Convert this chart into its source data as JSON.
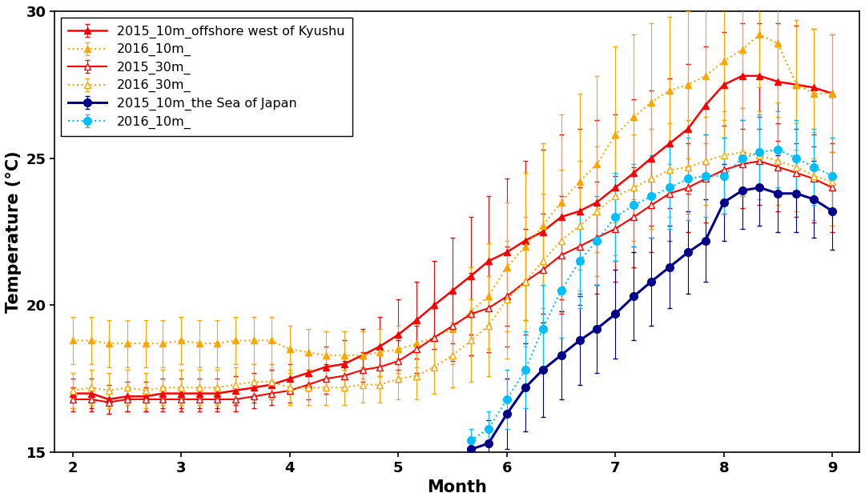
{
  "series": {
    "kyushu_2015_10m": {
      "label": "2015_10m_offshore west of Kyushu",
      "x": [
        2.0,
        2.17,
        2.33,
        2.5,
        2.67,
        2.83,
        3.0,
        3.17,
        3.33,
        3.5,
        3.67,
        3.83,
        4.0,
        4.17,
        4.33,
        4.5,
        4.67,
        4.83,
        5.0,
        5.17,
        5.33,
        5.5,
        5.67,
        5.83,
        6.0,
        6.17,
        6.33,
        6.5,
        6.67,
        6.83,
        7.0,
        7.17,
        7.33,
        7.5,
        7.67,
        7.83,
        8.0,
        8.17,
        8.33,
        8.5,
        8.67,
        8.83,
        9.0
      ],
      "y": [
        17.0,
        17.0,
        16.8,
        16.9,
        16.9,
        17.0,
        17.0,
        17.0,
        17.0,
        17.1,
        17.2,
        17.3,
        17.5,
        17.7,
        17.9,
        18.0,
        18.3,
        18.6,
        19.0,
        19.5,
        20.0,
        20.5,
        21.0,
        21.5,
        21.8,
        22.2,
        22.5,
        23.0,
        23.2,
        23.5,
        24.0,
        24.5,
        25.0,
        25.5,
        26.0,
        26.8,
        27.5,
        27.8,
        27.8,
        27.6,
        27.5,
        27.4,
        27.2
      ],
      "err": [
        0.5,
        0.5,
        0.5,
        0.5,
        0.5,
        0.5,
        0.5,
        0.5,
        0.5,
        0.5,
        0.5,
        0.5,
        0.5,
        0.6,
        0.7,
        0.8,
        0.9,
        1.0,
        1.2,
        1.3,
        1.5,
        1.8,
        2.0,
        2.2,
        2.5,
        2.7,
        2.8,
        2.8,
        2.8,
        2.8,
        2.5,
        2.5,
        2.3,
        2.2,
        2.2,
        2.0,
        1.8,
        1.8,
        1.8,
        2.0,
        2.0,
        2.0,
        2.0
      ],
      "color": "#FF0000",
      "linestyle": "-",
      "marker": "^",
      "markersize": 6,
      "markerfacecolor": "#FF0000",
      "markeredgecolor": "#FF0000",
      "linewidth": 1.8,
      "elinewidth": 0.8,
      "capsize": 2
    },
    "kyushu_2016_10m": {
      "label": "2016_10m_",
      "x": [
        2.0,
        2.17,
        2.33,
        2.5,
        2.67,
        2.83,
        3.0,
        3.17,
        3.33,
        3.5,
        3.67,
        3.83,
        4.0,
        4.17,
        4.33,
        4.5,
        4.67,
        4.83,
        5.0,
        5.17,
        5.33,
        5.5,
        5.67,
        5.83,
        6.0,
        6.17,
        6.33,
        6.5,
        6.67,
        6.83,
        7.0,
        7.17,
        7.33,
        7.5,
        7.67,
        7.83,
        8.0,
        8.17,
        8.33,
        8.5,
        8.67,
        8.83,
        9.0
      ],
      "y": [
        18.8,
        18.8,
        18.7,
        18.7,
        18.7,
        18.7,
        18.8,
        18.7,
        18.7,
        18.8,
        18.8,
        18.8,
        18.5,
        18.4,
        18.3,
        18.3,
        18.3,
        18.4,
        18.5,
        18.7,
        18.9,
        19.2,
        19.8,
        20.3,
        21.3,
        22.0,
        22.7,
        23.5,
        24.2,
        24.8,
        25.8,
        26.4,
        26.9,
        27.3,
        27.5,
        27.8,
        28.3,
        28.7,
        29.2,
        28.9,
        27.5,
        27.2,
        27.2
      ],
      "err": [
        0.8,
        0.8,
        0.8,
        0.8,
        0.8,
        0.8,
        0.8,
        0.8,
        0.8,
        0.8,
        0.8,
        0.8,
        0.8,
        0.8,
        0.8,
        0.8,
        0.8,
        0.8,
        0.8,
        0.8,
        1.0,
        1.2,
        1.5,
        1.8,
        2.2,
        2.5,
        2.8,
        3.0,
        3.0,
        3.0,
        3.0,
        2.8,
        2.7,
        2.5,
        2.5,
        2.3,
        2.0,
        2.0,
        1.8,
        2.0,
        2.2,
        2.2,
        2.0
      ],
      "color": "#FFA500",
      "linestyle": ":",
      "marker": "^",
      "markersize": 6,
      "markerfacecolor": "#FFA500",
      "markeredgecolor": "#FFA500",
      "linewidth": 1.5,
      "elinewidth": 0.8,
      "capsize": 2
    },
    "kyushu_2015_30m": {
      "label": "2015_30m_",
      "x": [
        2.0,
        2.17,
        2.33,
        2.5,
        2.67,
        2.83,
        3.0,
        3.17,
        3.33,
        3.5,
        3.67,
        3.83,
        4.0,
        4.17,
        4.33,
        4.5,
        4.67,
        4.83,
        5.0,
        5.17,
        5.33,
        5.5,
        5.67,
        5.83,
        6.0,
        6.17,
        6.33,
        6.5,
        6.67,
        6.83,
        7.0,
        7.17,
        7.33,
        7.5,
        7.67,
        7.83,
        8.0,
        8.17,
        8.33,
        8.5,
        8.67,
        8.83,
        9.0
      ],
      "y": [
        16.8,
        16.8,
        16.7,
        16.8,
        16.8,
        16.8,
        16.8,
        16.8,
        16.8,
        16.8,
        16.9,
        17.0,
        17.1,
        17.3,
        17.5,
        17.6,
        17.8,
        17.9,
        18.1,
        18.5,
        18.9,
        19.3,
        19.7,
        19.9,
        20.3,
        20.8,
        21.2,
        21.7,
        22.0,
        22.3,
        22.6,
        23.0,
        23.4,
        23.8,
        24.0,
        24.3,
        24.6,
        24.8,
        24.9,
        24.7,
        24.5,
        24.3,
        24.0
      ],
      "err": [
        0.4,
        0.4,
        0.4,
        0.4,
        0.4,
        0.4,
        0.4,
        0.4,
        0.4,
        0.4,
        0.4,
        0.4,
        0.4,
        0.5,
        0.5,
        0.5,
        0.6,
        0.6,
        0.7,
        0.8,
        1.0,
        1.2,
        1.4,
        1.5,
        1.7,
        1.8,
        1.9,
        2.0,
        2.0,
        1.9,
        1.8,
        1.7,
        1.6,
        1.6,
        1.5,
        1.5,
        1.5,
        1.5,
        1.5,
        1.5,
        1.5,
        1.5,
        1.5
      ],
      "color": "#FF0000",
      "linestyle": "-",
      "marker": "^",
      "markersize": 6,
      "markerfacecolor": "white",
      "markeredgecolor": "#FF0000",
      "linewidth": 1.5,
      "elinewidth": 0.8,
      "capsize": 2
    },
    "kyushu_2016_30m": {
      "label": "2016_30m_",
      "x": [
        2.0,
        2.17,
        2.33,
        2.5,
        2.67,
        2.83,
        3.0,
        3.17,
        3.33,
        3.5,
        3.67,
        3.83,
        4.0,
        4.17,
        4.33,
        4.5,
        4.67,
        4.83,
        5.0,
        5.17,
        5.33,
        5.5,
        5.67,
        5.83,
        6.0,
        6.17,
        6.33,
        6.5,
        6.67,
        6.83,
        7.0,
        7.17,
        7.33,
        7.5,
        7.67,
        7.83,
        8.0,
        8.17,
        8.33,
        8.5,
        8.67,
        8.83,
        9.0
      ],
      "y": [
        17.1,
        17.2,
        17.1,
        17.2,
        17.1,
        17.2,
        17.2,
        17.2,
        17.2,
        17.3,
        17.4,
        17.4,
        17.2,
        17.2,
        17.2,
        17.2,
        17.3,
        17.3,
        17.5,
        17.6,
        17.9,
        18.3,
        18.8,
        19.3,
        20.2,
        20.8,
        21.5,
        22.2,
        22.7,
        23.2,
        23.7,
        24.0,
        24.3,
        24.6,
        24.7,
        24.9,
        25.1,
        25.2,
        25.1,
        24.9,
        24.7,
        24.4,
        24.2
      ],
      "err": [
        0.6,
        0.6,
        0.6,
        0.6,
        0.6,
        0.6,
        0.6,
        0.6,
        0.6,
        0.6,
        0.6,
        0.6,
        0.6,
        0.6,
        0.6,
        0.6,
        0.6,
        0.6,
        0.7,
        0.8,
        0.9,
        1.1,
        1.4,
        1.7,
        2.0,
        2.2,
        2.3,
        2.4,
        2.2,
        2.2,
        2.0,
        1.8,
        1.7,
        1.6,
        1.6,
        1.5,
        1.5,
        1.5,
        1.5,
        1.5,
        1.5,
        1.5,
        1.5
      ],
      "color": "#FFA500",
      "linestyle": ":",
      "marker": "^",
      "markersize": 6,
      "markerfacecolor": "white",
      "markeredgecolor": "#FFA500",
      "linewidth": 1.5,
      "elinewidth": 0.8,
      "capsize": 2
    },
    "japan_2015_10m": {
      "label": "2015_10m_the Sea of Japan",
      "x": [
        5.67,
        5.83,
        6.0,
        6.17,
        6.33,
        6.5,
        6.67,
        6.83,
        7.0,
        7.17,
        7.33,
        7.5,
        7.67,
        7.83,
        8.0,
        8.17,
        8.33,
        8.5,
        8.67,
        8.83,
        9.0
      ],
      "y": [
        15.1,
        15.3,
        16.3,
        17.2,
        17.8,
        18.3,
        18.8,
        19.2,
        19.7,
        20.3,
        20.8,
        21.3,
        21.8,
        22.2,
        23.5,
        23.9,
        24.0,
        23.8,
        23.8,
        23.6,
        23.2
      ],
      "err": [
        0.2,
        0.8,
        1.2,
        1.5,
        1.6,
        1.5,
        1.5,
        1.5,
        1.5,
        1.5,
        1.5,
        1.4,
        1.4,
        1.4,
        1.3,
        1.3,
        1.3,
        1.3,
        1.3,
        1.3,
        1.3
      ],
      "color": "#00008B",
      "linestyle": "-",
      "marker": "o",
      "markersize": 7,
      "markerfacecolor": "#00008B",
      "markeredgecolor": "#00008B",
      "linewidth": 2.2,
      "elinewidth": 0.8,
      "capsize": 2
    },
    "japan_2016_10m": {
      "label": "2016_10m_",
      "x": [
        5.67,
        5.83,
        6.0,
        6.17,
        6.33,
        6.5,
        6.67,
        6.83,
        7.0,
        7.17,
        7.33,
        7.5,
        7.67,
        7.83,
        8.0,
        8.17,
        8.33,
        8.5,
        8.67,
        8.83,
        9.0
      ],
      "y": [
        15.4,
        15.8,
        16.8,
        17.8,
        19.2,
        20.5,
        21.5,
        22.2,
        23.0,
        23.4,
        23.7,
        24.0,
        24.3,
        24.4,
        24.4,
        25.0,
        25.2,
        25.3,
        25.0,
        24.7,
        24.4
      ],
      "err": [
        0.4,
        0.6,
        1.0,
        1.3,
        1.5,
        1.6,
        1.6,
        1.5,
        1.5,
        1.4,
        1.4,
        1.4,
        1.4,
        1.4,
        1.3,
        1.3,
        1.3,
        1.3,
        1.3,
        1.3,
        1.3
      ],
      "color": "#00BFFF",
      "linestyle": ":",
      "marker": "o",
      "markersize": 7,
      "markerfacecolor": "#00BFFF",
      "markeredgecolor": "#00BFFF",
      "linewidth": 1.5,
      "elinewidth": 0.8,
      "capsize": 2
    }
  },
  "xlabel": "Month",
  "ylabel": "Temperature (°C)",
  "xlim": [
    1.83,
    9.25
  ],
  "ylim": [
    15,
    30
  ],
  "xticks": [
    2,
    3,
    4,
    5,
    6,
    7,
    8,
    9
  ],
  "yticks": [
    15,
    20,
    25,
    30
  ],
  "background_color": "#ffffff",
  "legend_loc": "upper left",
  "axis_fontsize": 15,
  "tick_fontsize": 13,
  "legend_fontsize": 11.5
}
